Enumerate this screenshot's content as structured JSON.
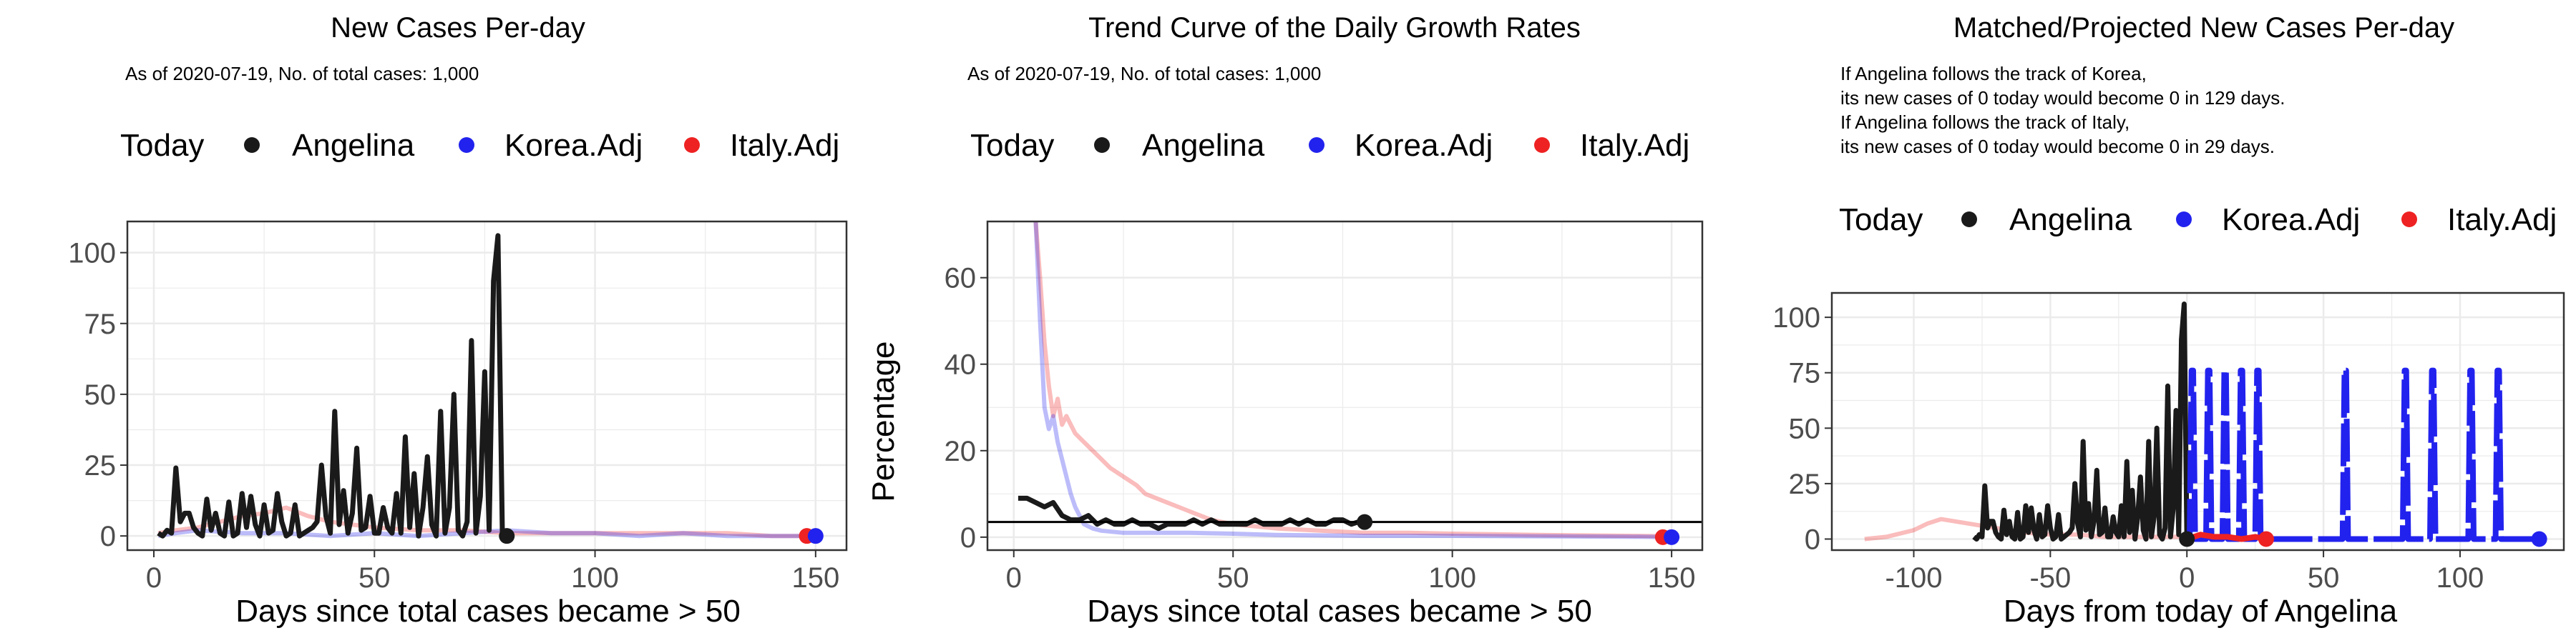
{
  "colors": {
    "angelina": "#1a1a1a",
    "korea": "#2222ee",
    "italy": "#ee2222",
    "grid": "#ebebeb",
    "panel_border": "#333333",
    "trend": "#000000"
  },
  "legend": {
    "title": "Today",
    "items": [
      "Angelina",
      "Korea.Adj",
      "Italy.Adj"
    ]
  },
  "chart_data": [
    {
      "type": "line",
      "title": "New Cases Per-day",
      "subtitle": "As of 2020-07-19, No. of total cases: 1,000",
      "xlabel": "Days since total cases became > 50",
      "ylabel": "",
      "xlim": [
        -6,
        157
      ],
      "ylim": [
        -5,
        111
      ],
      "x_ticks": [
        0,
        50,
        100,
        150
      ],
      "y_ticks": [
        0,
        25,
        50,
        75,
        100
      ],
      "grid": true,
      "legend_position": "top",
      "series": [
        {
          "name": "Italy.Adj",
          "x": [
            1,
            5,
            10,
            15,
            20,
            25,
            30,
            35,
            40,
            50,
            60,
            70,
            80,
            90,
            100,
            110,
            120,
            130,
            140,
            150
          ],
          "y": [
            1,
            2,
            3,
            5,
            7,
            8,
            10,
            7,
            5,
            3,
            2,
            2,
            1,
            1,
            1,
            1,
            1,
            1,
            0,
            0
          ]
        },
        {
          "name": "Korea.Adj",
          "x": [
            1,
            5,
            10,
            20,
            30,
            40,
            50,
            60,
            70,
            80,
            90,
            100,
            110,
            120,
            130,
            140,
            150
          ],
          "y": [
            0,
            1,
            2,
            1,
            1,
            0,
            1,
            0,
            1,
            2,
            1,
            1,
            0,
            1,
            0,
            0,
            0
          ]
        },
        {
          "name": "Angelina",
          "x": [
            1,
            2,
            3,
            4,
            5,
            6,
            7,
            8,
            9,
            10,
            11,
            12,
            13,
            14,
            15,
            16,
            17,
            18,
            19,
            20,
            21,
            22,
            23,
            24,
            25,
            26,
            27,
            28,
            29,
            30,
            31,
            32,
            33,
            34,
            35,
            36,
            37,
            38,
            39,
            40,
            41,
            42,
            43,
            44,
            45,
            46,
            47,
            48,
            49,
            50,
            51,
            52,
            53,
            54,
            55,
            56,
            57,
            58,
            59,
            60,
            61,
            62,
            63,
            64,
            65,
            66,
            67,
            68,
            69,
            70,
            71,
            72,
            73,
            74,
            75,
            76,
            77,
            78,
            79,
            80
          ],
          "y": [
            1,
            0,
            2,
            1,
            24,
            5,
            8,
            8,
            3,
            1,
            0,
            13,
            2,
            8,
            1,
            0,
            12,
            0,
            1,
            15,
            3,
            14,
            4,
            0,
            11,
            1,
            2,
            15,
            5,
            0,
            1,
            11,
            0,
            1,
            2,
            3,
            5,
            25,
            7,
            1,
            44,
            4,
            16,
            1,
            8,
            31,
            2,
            3,
            14,
            1,
            1,
            10,
            3,
            1,
            15,
            1,
            35,
            3,
            22,
            0,
            10,
            28,
            4,
            0,
            44,
            1,
            10,
            50,
            2,
            0,
            5,
            69,
            1,
            14,
            58,
            2,
            90,
            106,
            0,
            0
          ]
        }
      ],
      "today_points": [
        {
          "name": "Angelina",
          "x": 80,
          "y": 0
        },
        {
          "name": "Italy.Adj",
          "x": 148,
          "y": 0
        },
        {
          "name": "Korea.Adj",
          "x": 150,
          "y": 0
        }
      ]
    },
    {
      "type": "line",
      "title": "Trend Curve of the Daily Growth Rates",
      "subtitle": "As of 2020-07-19, No. of total cases: 1,000",
      "xlabel": "Days since total cases became > 50",
      "ylabel": "Percentage",
      "xlim": [
        -6,
        157
      ],
      "ylim": [
        -3,
        73
      ],
      "x_ticks": [
        0,
        50,
        100,
        150
      ],
      "y_ticks": [
        0,
        20,
        40,
        60
      ],
      "grid": true,
      "legend_position": "top",
      "hline": 3.5,
      "series": [
        {
          "name": "Italy.Adj",
          "x": [
            5,
            6,
            7,
            8,
            9,
            10,
            11,
            12,
            14,
            16,
            18,
            20,
            22,
            25,
            28,
            30,
            35,
            40,
            45,
            50,
            60,
            70,
            80,
            90,
            100,
            120,
            140,
            150
          ],
          "y": [
            73,
            60,
            45,
            35,
            28,
            32,
            26,
            28,
            24,
            22,
            20,
            18,
            16,
            14,
            12,
            10,
            8,
            6,
            4,
            3,
            2,
            1.5,
            1,
            1,
            0.8,
            0.5,
            0.3,
            0.2
          ]
        },
        {
          "name": "Korea.Adj",
          "x": [
            5,
            6,
            7,
            8,
            9,
            10,
            11,
            12,
            13,
            14,
            15,
            16,
            18,
            20,
            25,
            30,
            40,
            50,
            60,
            80,
            100,
            120,
            140,
            150
          ],
          "y": [
            73,
            50,
            30,
            25,
            28,
            22,
            18,
            14,
            10,
            7,
            5,
            3,
            2,
            1.5,
            1,
            1,
            1,
            0.8,
            0.5,
            0.3,
            0.3,
            0.2,
            0.1,
            0
          ]
        },
        {
          "name": "Angelina",
          "x": [
            1,
            3,
            5,
            7,
            9,
            11,
            13,
            15,
            17,
            19,
            21,
            23,
            25,
            27,
            29,
            31,
            33,
            35,
            37,
            39,
            41,
            43,
            45,
            47,
            49,
            51,
            53,
            55,
            57,
            59,
            61,
            63,
            65,
            67,
            69,
            71,
            73,
            75,
            77,
            80
          ],
          "y": [
            9,
            9,
            8,
            7,
            8,
            5,
            4,
            4,
            5,
            3,
            4,
            3,
            3,
            4,
            3,
            3,
            2,
            3,
            3,
            3,
            4,
            3,
            4,
            3,
            3,
            3,
            3,
            4,
            3,
            3,
            3,
            4,
            3,
            4,
            3,
            3,
            4,
            4,
            3,
            4
          ]
        }
      ],
      "today_points": [
        {
          "name": "Angelina",
          "x": 80,
          "y": 3.5
        },
        {
          "name": "Italy.Adj",
          "x": 148,
          "y": 0
        },
        {
          "name": "Korea.Adj",
          "x": 150,
          "y": 0
        }
      ]
    },
    {
      "type": "line",
      "title": "Matched/Projected New Cases Per-day",
      "subtitle_lines": [
        "If Angelina follows the track of Korea,",
        "its new cases of 0 today would become 0 in 129 days.",
        "If Angelina follows the track of Italy,",
        "its new cases of 0 today would become 0 in 29 days."
      ],
      "xlabel": "Days from today of Angelina",
      "ylabel": "",
      "xlim": [
        -130,
        138
      ],
      "ylim": [
        -5,
        111
      ],
      "x_ticks": [
        -100,
        -50,
        0,
        50,
        100
      ],
      "y_ticks": [
        0,
        25,
        50,
        75,
        100
      ],
      "grid": true,
      "legend_position": "top",
      "italy_hist": {
        "x": [
          -118,
          -110,
          -100,
          -95,
          -90,
          -85,
          -80,
          -75,
          -70,
          -60,
          -50,
          -40,
          -30,
          -20,
          -10,
          0
        ],
        "y": [
          0,
          1,
          4,
          7,
          9,
          8,
          7,
          6,
          5,
          3,
          2,
          2,
          1,
          1,
          1,
          1
        ]
      },
      "italy_proj": {
        "x": [
          0,
          5,
          10,
          15,
          20,
          25,
          29
        ],
        "y": [
          0,
          2,
          1,
          1,
          0,
          1,
          0
        ]
      },
      "korea_spike_days": [
        2,
        8,
        14,
        20,
        26,
        58,
        80,
        90,
        104,
        114
      ],
      "korea_spike_height": 76,
      "korea_end": 129,
      "angelina_offset": -79,
      "today_points": [
        {
          "name": "Angelina",
          "x": 0,
          "y": 0
        },
        {
          "name": "Italy.Adj",
          "x": 29,
          "y": 0
        },
        {
          "name": "Korea.Adj",
          "x": 129,
          "y": 0
        }
      ]
    }
  ]
}
